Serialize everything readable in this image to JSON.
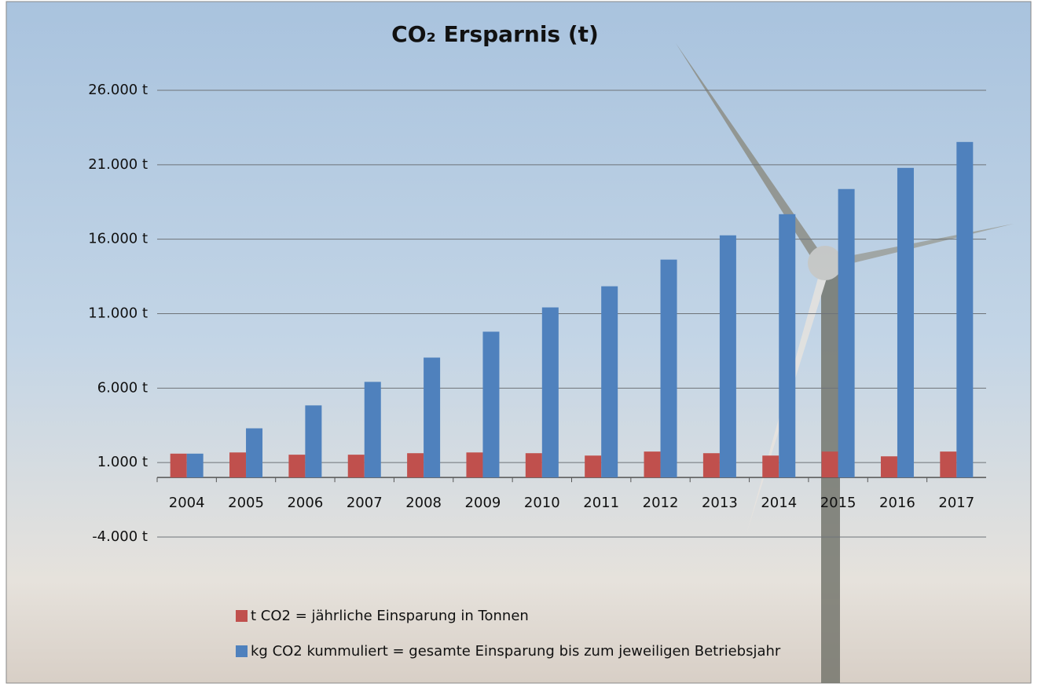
{
  "chart_data": {
    "type": "bar",
    "title": "CO₂ Ersparnis (t)",
    "categories": [
      "2004",
      "2005",
      "2006",
      "2007",
      "2008",
      "2009",
      "2010",
      "2011",
      "2012",
      "2013",
      "2014",
      "2015",
      "2016",
      "2017"
    ],
    "series": [
      {
        "name": "t CO2 = jährliche Einsparung in Tonnen",
        "color": "#c0504d",
        "values": [
          1600,
          1680,
          1530,
          1530,
          1630,
          1680,
          1630,
          1470,
          1740,
          1630,
          1470,
          1740,
          1420,
          1740
        ]
      },
      {
        "name": "kg CO2 kummuliert = gesamte Einsparung bis zum jeweiligen Betriebsjahr",
        "color": "#4f81bd",
        "values": [
          1600,
          3300,
          4840,
          6420,
          8050,
          9790,
          11420,
          12840,
          14630,
          16260,
          17680,
          19370,
          20790,
          22530
        ]
      }
    ],
    "ylim": [
      -4000,
      26000
    ],
    "yticks": [
      {
        "value": -4000,
        "label": "-4.000 t"
      },
      {
        "value": 1000,
        "label": "1.000 t"
      },
      {
        "value": 6000,
        "label": "6.000 t"
      },
      {
        "value": 11000,
        "label": "11.000 t"
      },
      {
        "value": 16000,
        "label": "16.000 t"
      },
      {
        "value": 21000,
        "label": "21.000 t"
      },
      {
        "value": 26000,
        "label": "26.000 t"
      }
    ],
    "grid": true
  }
}
